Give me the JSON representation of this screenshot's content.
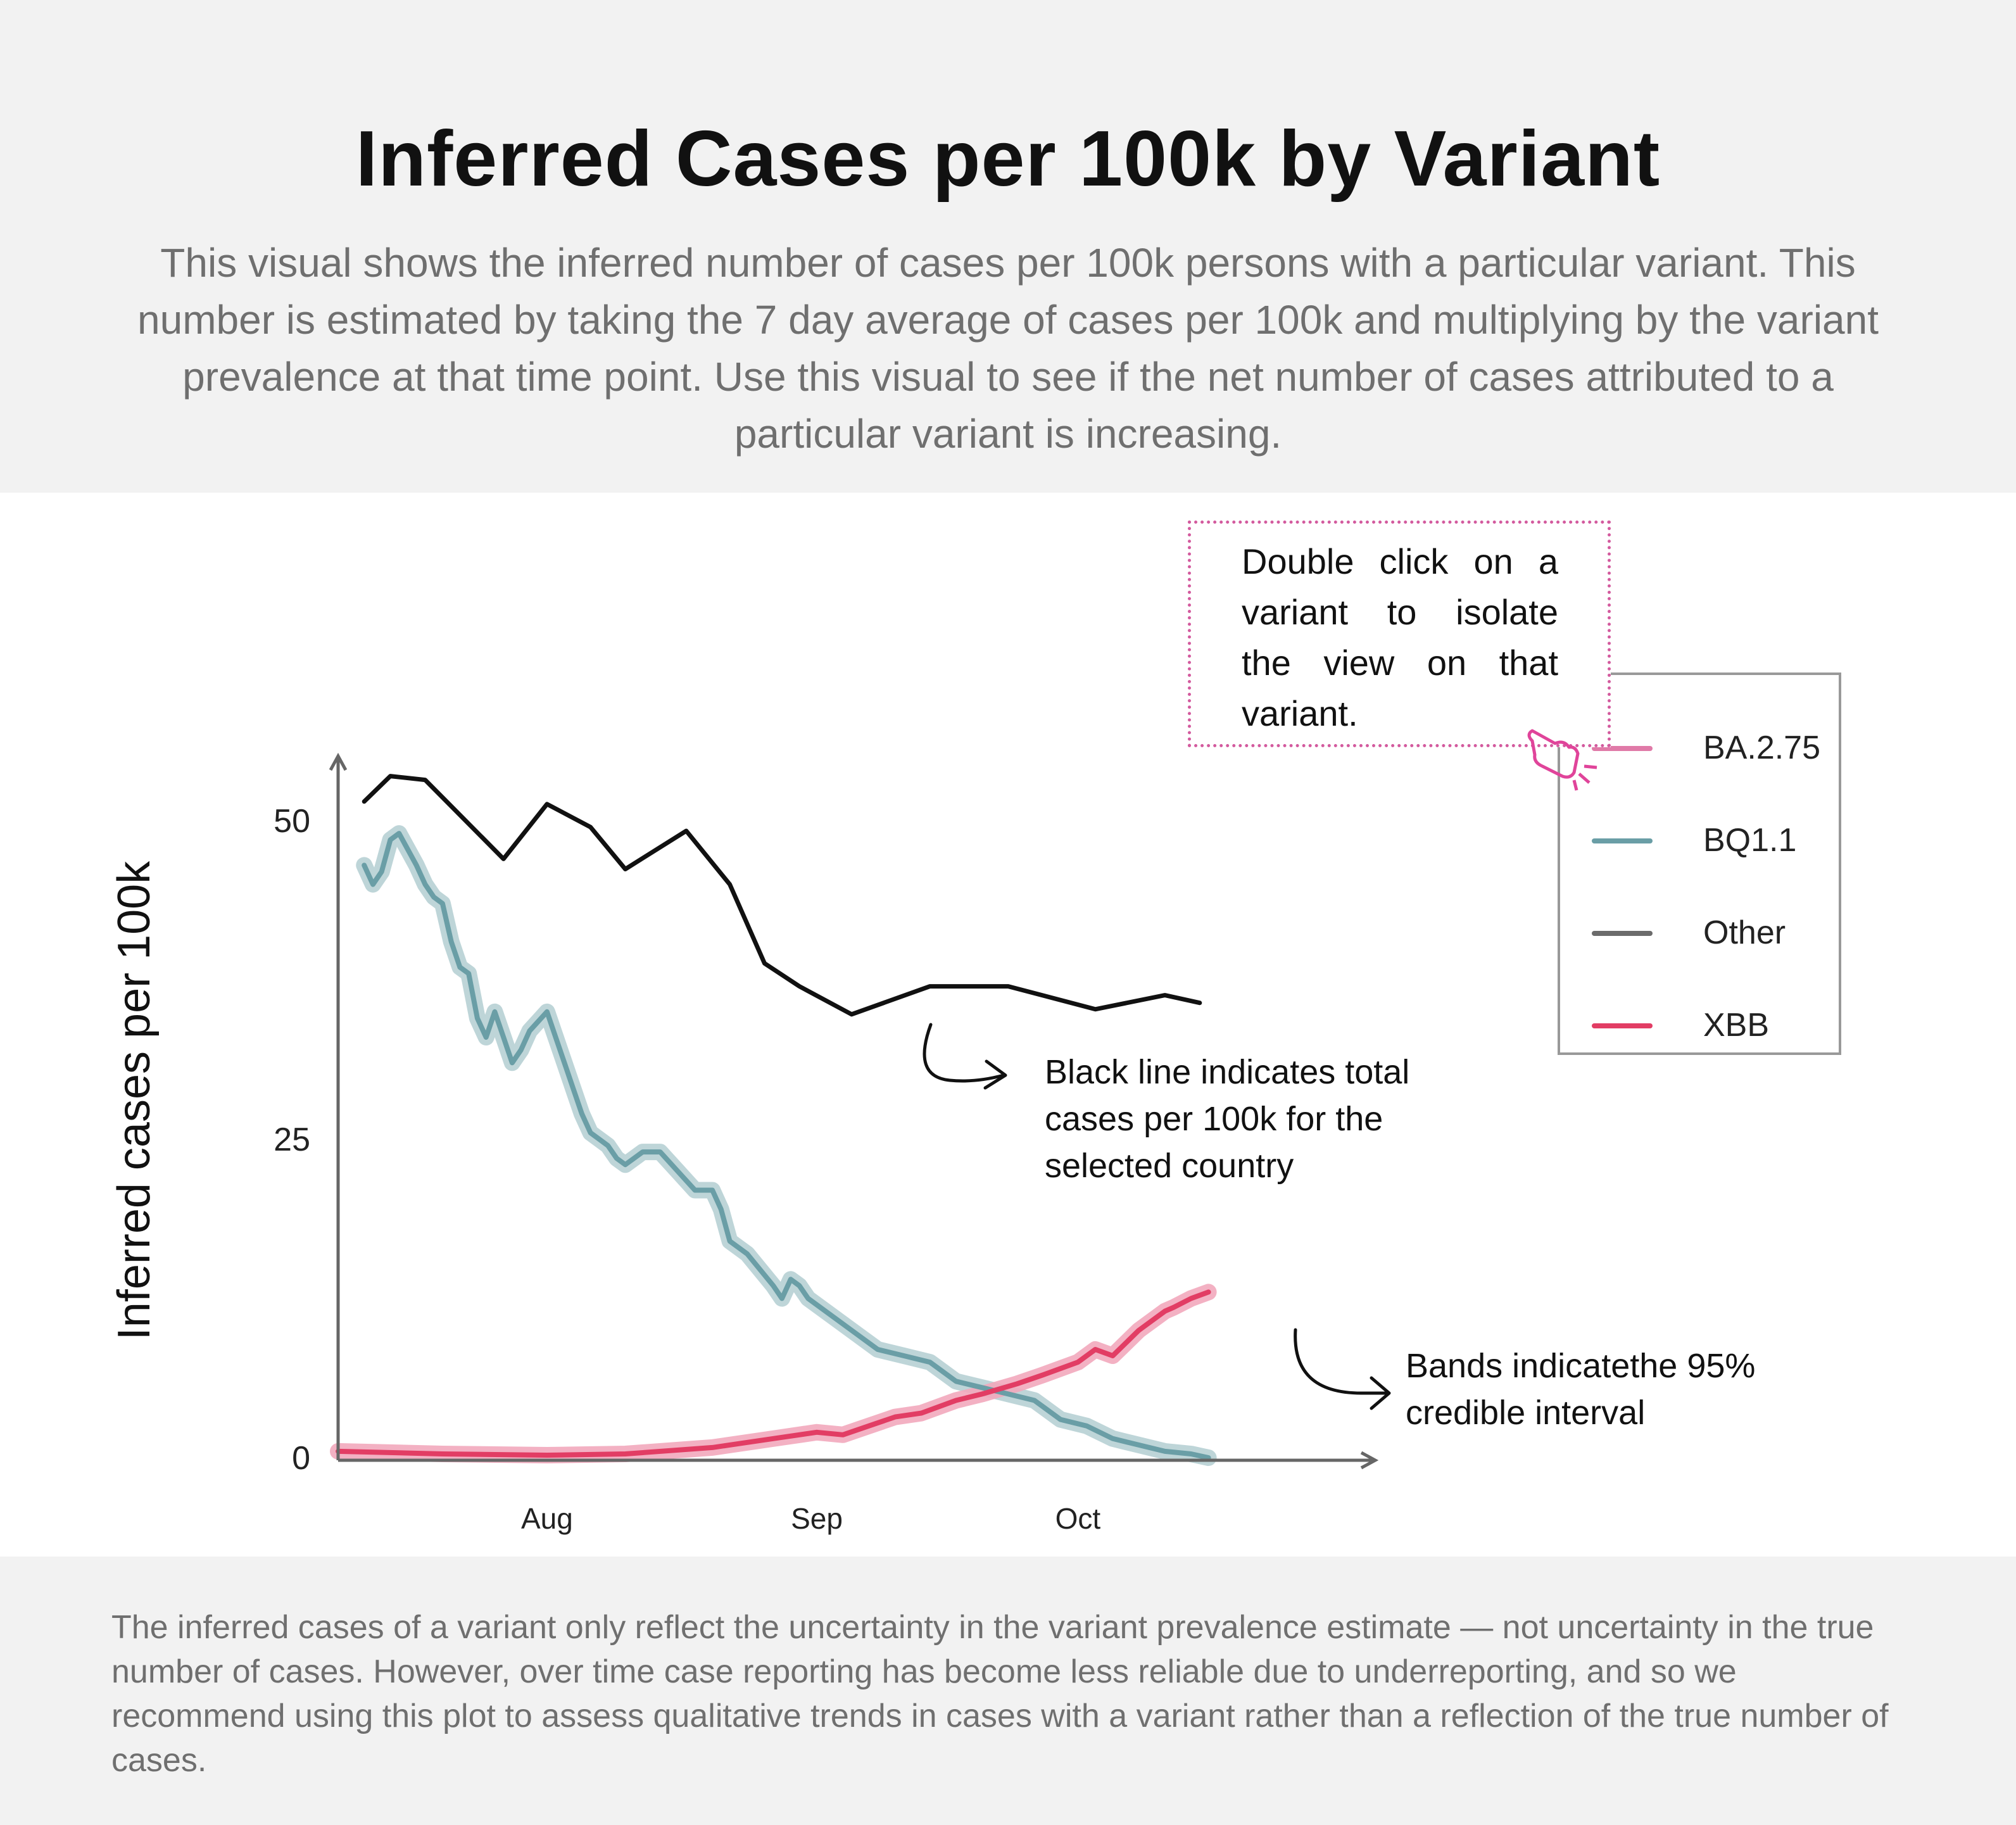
{
  "header": {
    "title": "Inferred Cases per 100k by Variant",
    "subtitle": "This visual shows the inferred number of cases per 100k persons with a particular variant. This number is estimated by taking the 7 day average of cases per 100k and multiplying by the variant prevalence at that time point. Use this visual to see if the net number of cases attributed to a particular variant is increasing."
  },
  "tooltip": {
    "text": "Double click on a variant to isolate the view on that variant."
  },
  "annotations": {
    "black_line": "Black line indicates total cases per 100k for the selected country",
    "bands": "Bands indicatethe 95% credible interval"
  },
  "footer": {
    "text": "The inferred cases of a variant only reflect the uncertainty in the variant prevalence estimate — not uncertainty in the true number of cases. However, over time case reporting has become less reliable due to underreporting, and so we recommend using this plot to assess qualitative trends in cases with a variant rather than a reflection of the true number of cases."
  },
  "colors": {
    "BA.2.75": "#e07aa8",
    "BQ1.1": "#6a9ea6",
    "BQ1.1_band": "#b7d0d4",
    "Other": "#111111",
    "Other_legend": "#6b6b6b",
    "XBB": "#e23d64",
    "XBB_band": "#f2a9bc",
    "axis": "#666666",
    "tip_border": "#d35a9e"
  },
  "chart_data": {
    "type": "line",
    "title": "Inferred Cases per 100k by Variant",
    "ylabel": "Inferred cases per 100k",
    "xlabel": "",
    "ylim": [
      0,
      56
    ],
    "yticks": [
      0,
      25,
      50
    ],
    "xticks": [
      {
        "label": "Aug",
        "date": "2022-08-01"
      },
      {
        "label": "Sep",
        "date": "2022-09-01"
      },
      {
        "label": "Oct",
        "date": "2022-10-01"
      }
    ],
    "xlim": [
      "2022-07-08",
      "2022-11-03"
    ],
    "grid": false,
    "legend": {
      "position": "right",
      "entries": [
        "BA.2.75",
        "BQ1.1",
        "Other",
        "XBB"
      ]
    },
    "series": [
      {
        "name": "Other",
        "x": [
          "2022-07-11",
          "2022-07-14",
          "2022-07-18",
          "2022-07-27",
          "2022-08-01",
          "2022-08-06",
          "2022-08-10",
          "2022-08-17",
          "2022-08-22",
          "2022-08-26",
          "2022-08-30",
          "2022-09-05",
          "2022-09-14",
          "2022-09-23",
          "2022-10-03",
          "2022-10-11",
          "2022-10-15"
        ],
        "values": [
          51.5,
          53.5,
          53.2,
          47.0,
          51.3,
          49.5,
          46.2,
          49.2,
          45.0,
          38.8,
          37.0,
          34.8,
          37.0,
          37.0,
          35.2,
          36.3,
          35.7
        ]
      },
      {
        "name": "BQ1.1",
        "band": true,
        "x": [
          "2022-07-11",
          "2022-07-12",
          "2022-07-13",
          "2022-07-14",
          "2022-07-15",
          "2022-07-17",
          "2022-07-18",
          "2022-07-19",
          "2022-07-20",
          "2022-07-21",
          "2022-07-22",
          "2022-07-23",
          "2022-07-24",
          "2022-07-25",
          "2022-07-26",
          "2022-07-27",
          "2022-07-28",
          "2022-07-29",
          "2022-07-30",
          "2022-08-01",
          "2022-08-02",
          "2022-08-03",
          "2022-08-04",
          "2022-08-05",
          "2022-08-06",
          "2022-08-07",
          "2022-08-08",
          "2022-08-09",
          "2022-08-10",
          "2022-08-12",
          "2022-08-14",
          "2022-08-16",
          "2022-08-18",
          "2022-08-20",
          "2022-08-21",
          "2022-08-22",
          "2022-08-23",
          "2022-08-24",
          "2022-08-27",
          "2022-08-28",
          "2022-08-29",
          "2022-08-30",
          "2022-08-31",
          "2022-09-02",
          "2022-09-05",
          "2022-09-08",
          "2022-09-11",
          "2022-09-14",
          "2022-09-17",
          "2022-09-20",
          "2022-09-23",
          "2022-09-26",
          "2022-09-29",
          "2022-10-02",
          "2022-10-05",
          "2022-10-08",
          "2022-10-11",
          "2022-10-14",
          "2022-10-16"
        ],
        "values": [
          46.5,
          45.0,
          46.0,
          48.5,
          49.0,
          46.5,
          45.0,
          44.0,
          43.5,
          40.5,
          38.5,
          38.0,
          34.5,
          33.0,
          35.0,
          33.0,
          31.0,
          32.0,
          33.5,
          35.0,
          33.0,
          31.0,
          29.0,
          27.0,
          25.5,
          25.0,
          24.5,
          23.5,
          23.0,
          24.0,
          24.0,
          22.5,
          21.0,
          21.0,
          19.5,
          17.0,
          16.5,
          16.0,
          13.5,
          12.5,
          14.0,
          13.5,
          12.5,
          11.5,
          10.0,
          8.5,
          8.0,
          7.5,
          6.0,
          5.5,
          5.0,
          4.5,
          3.0,
          2.5,
          1.5,
          1.0,
          0.5,
          0.3,
          0.0
        ]
      },
      {
        "name": "XBB",
        "band": true,
        "x": [
          "2022-07-08",
          "2022-07-20",
          "2022-08-01",
          "2022-08-10",
          "2022-08-20",
          "2022-08-27",
          "2022-09-01",
          "2022-09-04",
          "2022-09-07",
          "2022-09-10",
          "2022-09-13",
          "2022-09-17",
          "2022-09-20",
          "2022-09-24",
          "2022-09-27",
          "2022-10-01",
          "2022-10-03",
          "2022-10-05",
          "2022-10-08",
          "2022-10-11",
          "2022-10-12",
          "2022-10-14",
          "2022-10-16"
        ],
        "values": [
          0.5,
          0.3,
          0.2,
          0.3,
          0.8,
          1.5,
          2.0,
          1.8,
          2.5,
          3.2,
          3.5,
          4.5,
          5.0,
          5.8,
          6.5,
          7.5,
          8.5,
          8.0,
          10.0,
          11.5,
          11.8,
          12.5,
          13.0
        ]
      },
      {
        "name": "BA.2.75",
        "x": [],
        "values": []
      }
    ]
  }
}
